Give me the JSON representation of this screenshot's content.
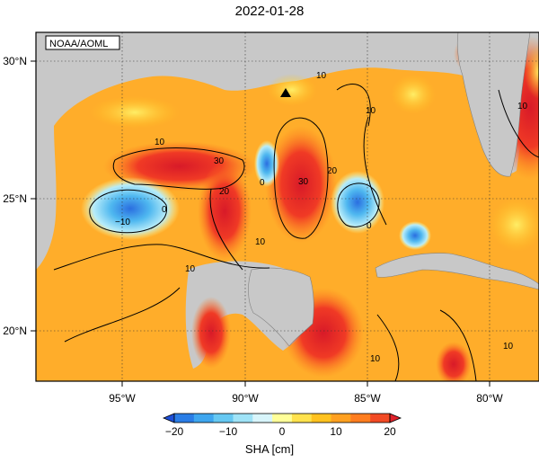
{
  "title": "2022-01-28",
  "credit": "NOAA/AOML",
  "axes": {
    "lon_ticks": [
      {
        "value": -95,
        "label": "95°W"
      },
      {
        "value": -90,
        "label": "90°W"
      },
      {
        "value": -85,
        "label": "85°W"
      },
      {
        "value": -80,
        "label": "80°W"
      }
    ],
    "lat_ticks": [
      {
        "value": 30,
        "label": "30°N"
      },
      {
        "value": 25,
        "label": "25°N"
      },
      {
        "value": 20,
        "label": "20°N"
      }
    ],
    "lon_range": [
      -98.5,
      -78.0
    ],
    "lat_range": [
      18.2,
      31.0
    ],
    "grid": "dotted"
  },
  "colorbar": {
    "ticks": [
      "−20",
      "−10",
      "0",
      "10",
      "20"
    ],
    "colors": [
      "#1d4fd8",
      "#2a7de6",
      "#3ea6ef",
      "#66c8f2",
      "#9fe3f7",
      "#d8f5fb",
      "#ffff99",
      "#ffe24d",
      "#ffc21f",
      "#ffa020",
      "#ff7d1f",
      "#f24a24",
      "#e0222b"
    ],
    "label": "SHA [cm]"
  },
  "map_colors": {
    "land": "#c8c8c8",
    "ocean_base": "#ffad2a"
  },
  "contour_labels": [
    "10",
    "10",
    "10",
    "10",
    "10",
    "10",
    "10",
    "10",
    "20",
    "20",
    "30",
    "30",
    "0",
    "0",
    "0",
    "−10"
  ],
  "markers": [
    {
      "type": "triangle",
      "lon": -88.3,
      "lat": 28.8
    }
  ]
}
